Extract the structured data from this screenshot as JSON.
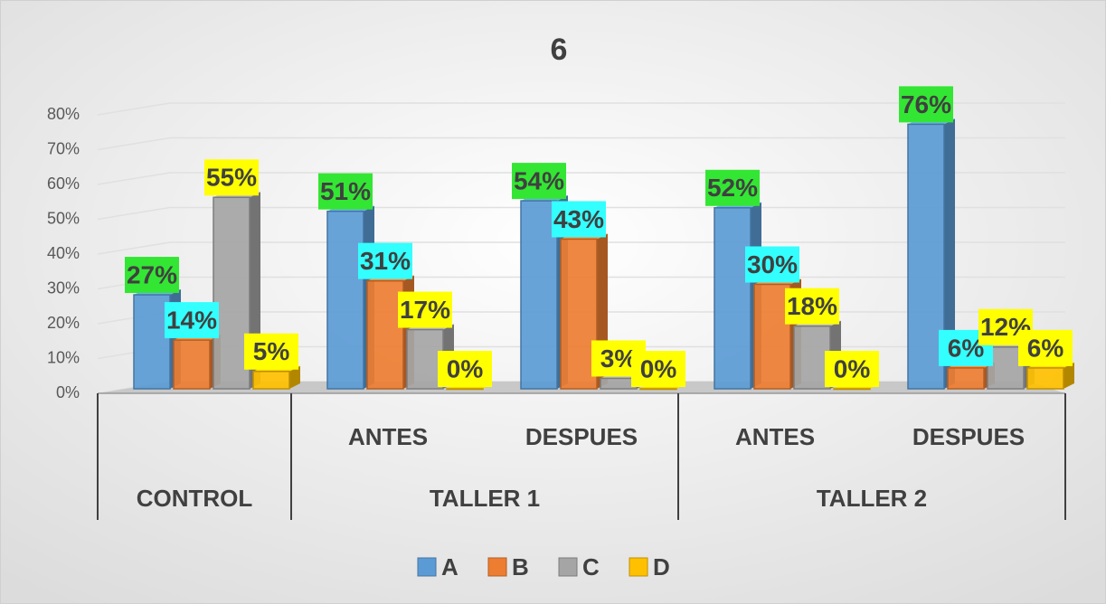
{
  "chart_data": {
    "type": "bar3d",
    "title": "6",
    "groups": [
      {
        "label": "CONTROL",
        "categories": [
          null
        ]
      },
      {
        "label": "TALLER 1",
        "categories": [
          "ANTES",
          "DESPUES"
        ]
      },
      {
        "label": "TALLER 2",
        "categories": [
          "ANTES",
          "DESPUES"
        ]
      }
    ],
    "series": [
      {
        "name": "A",
        "color": "#5b9bd5",
        "label_bg": "#33e633",
        "values": [
          27,
          51,
          54,
          52,
          76
        ],
        "value_labels": [
          "27%",
          "51%",
          "54%",
          "52%",
          "76%"
        ]
      },
      {
        "name": "B",
        "color": "#ed7d31",
        "label_bg": "#33ffff",
        "values": [
          14,
          31,
          43,
          30,
          6
        ],
        "value_labels": [
          "14%",
          "31%",
          "43%",
          "30%",
          "6%"
        ]
      },
      {
        "name": "C",
        "color": "#a5a5a5",
        "label_bg": "#ffff00",
        "values": [
          55,
          17,
          3,
          18,
          12
        ],
        "value_labels": [
          "55%",
          "17%",
          "3%",
          "18%",
          "12%"
        ]
      },
      {
        "name": "D",
        "color": "#ffc000",
        "label_bg": "#ffff00",
        "values": [
          5,
          0,
          0,
          0,
          6
        ],
        "value_labels": [
          "5%",
          "0%",
          "0%",
          "0%",
          "6%"
        ]
      }
    ],
    "ylim": [
      0,
      80
    ],
    "yticks": [
      {
        "value": 0,
        "label": "0%"
      },
      {
        "value": 10,
        "label": "10%"
      },
      {
        "value": 20,
        "label": "20%"
      },
      {
        "value": 30,
        "label": "30%"
      },
      {
        "value": 40,
        "label": "40%"
      },
      {
        "value": 50,
        "label": "50%"
      },
      {
        "value": 60,
        "label": "60%"
      },
      {
        "value": 70,
        "label": "70%"
      },
      {
        "value": 80,
        "label": "80%"
      }
    ],
    "grid": true,
    "legend": "bottom"
  }
}
